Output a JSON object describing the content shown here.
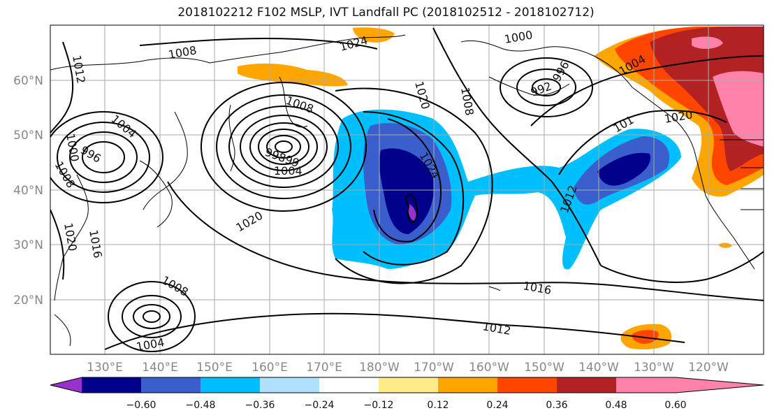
{
  "title": "2018102212 F102 MSLP, IVT Landfall PC (2018102512 - 2018102712)",
  "map": {
    "lat_labels": [
      "60°N",
      "50°N",
      "40°N",
      "30°N",
      "20°N"
    ],
    "lon_labels": [
      "130°E",
      "140°E",
      "150°E",
      "160°E",
      "170°E",
      "180°W",
      "170°W",
      "160°W",
      "150°W",
      "140°W",
      "130°W",
      "120°W"
    ],
    "isobar_labels": [
      {
        "text": "1012",
        "angle": 80
      },
      {
        "text": "1008",
        "angle": -10
      },
      {
        "text": "1024",
        "angle": -15
      },
      {
        "text": "1000",
        "angle": -10
      },
      {
        "text": "996",
        "angle": -60
      },
      {
        "text": "992",
        "angle": -20
      },
      {
        "text": "1004",
        "angle": -30
      },
      {
        "text": "1020",
        "angle": 75
      },
      {
        "text": "1008",
        "angle": 80
      },
      {
        "text": "1008",
        "angle": 20
      },
      {
        "text": "1004",
        "angle": 40
      },
      {
        "text": "1000",
        "angle": 80
      },
      {
        "text": "996",
        "angle": 30
      },
      {
        "text": "1008",
        "angle": 60
      },
      {
        "text": "99899",
        "angle": 20
      },
      {
        "text": "1004",
        "angle": 0
      },
      {
        "text": "1024",
        "angle": 60
      },
      {
        "text": "1020",
        "angle": -30
      },
      {
        "text": "1020",
        "angle": 80
      },
      {
        "text": "1016",
        "angle": 80
      },
      {
        "text": "1012",
        "angle": -70
      },
      {
        "text": "101",
        "angle": -30
      },
      {
        "text": "1020",
        "angle": -10
      },
      {
        "text": "1008",
        "angle": 30
      },
      {
        "text": "1004",
        "angle": -10
      },
      {
        "text": "1016",
        "angle": 10
      },
      {
        "text": "1012",
        "angle": 10
      }
    ]
  },
  "colorbar": {
    "ticks": [
      "−0.60",
      "−0.48",
      "−0.36",
      "−0.24",
      "−0.12",
      "0.12",
      "0.24",
      "0.36",
      "0.48",
      "0.60"
    ],
    "colors": [
      "#9932cc",
      "#00008b",
      "#3a5fcd",
      "#00bfff",
      "#b0e2ff",
      "#ffffff",
      "#ffeb8a",
      "#ffa500",
      "#ff4500",
      "#b22222",
      "#ff82ab"
    ]
  },
  "colors": {
    "neg_strong": "#00008b",
    "neg_mid": "#3a5fcd",
    "neg_weak": "#00bfff",
    "neg_faint": "#b0e2ff",
    "pos_weak": "#ffeb8a",
    "pos_mid": "#ffa500",
    "pos_strong": "#ff4500",
    "pos_stronger": "#b22222",
    "pos_max": "#ff82ab",
    "neg_max": "#9932cc",
    "grid": "#aaaaaa"
  }
}
